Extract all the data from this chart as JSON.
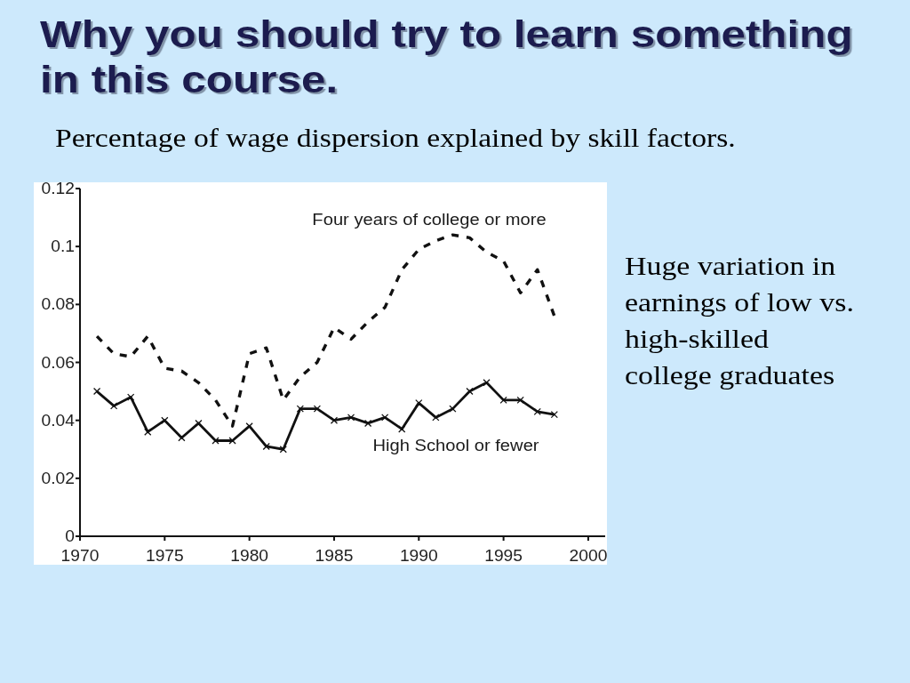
{
  "chart_data": {
    "type": "line",
    "title": "Why you should try to learn something in this course.",
    "subtitle": "Percentage of wage dispersion explained by skill factors.",
    "annotations": [
      "Huge variation in earnings of low vs. high-skilled college graduates"
    ],
    "x": [
      1971,
      1972,
      1973,
      1974,
      1975,
      1976,
      1977,
      1978,
      1979,
      1980,
      1981,
      1982,
      1983,
      1984,
      1985,
      1986,
      1987,
      1988,
      1989,
      1990,
      1991,
      1992,
      1993,
      1994,
      1995,
      1996,
      1997,
      1998
    ],
    "series": [
      {
        "name": "Four years of college or more",
        "color": "#111111",
        "line_style": "dashed",
        "marker": "none",
        "values": [
          0.069,
          0.063,
          0.062,
          0.069,
          0.058,
          0.057,
          0.053,
          0.047,
          0.038,
          0.063,
          0.065,
          0.047,
          0.055,
          0.06,
          0.072,
          0.068,
          0.074,
          0.079,
          0.092,
          0.099,
          0.102,
          0.104,
          0.103,
          0.098,
          0.095,
          0.084,
          0.092,
          0.076
        ]
      },
      {
        "name": "High School or fewer",
        "color": "#111111",
        "line_style": "solid",
        "marker": "cross",
        "values": [
          0.05,
          0.045,
          0.048,
          0.036,
          0.04,
          0.034,
          0.039,
          0.033,
          0.033,
          0.038,
          0.031,
          0.03,
          0.044,
          0.044,
          0.04,
          0.041,
          0.039,
          0.041,
          0.037,
          0.046,
          0.041,
          0.044,
          0.05,
          0.053,
          0.047,
          0.047,
          0.043,
          0.042
        ]
      }
    ],
    "xlim": [
      1970,
      2001
    ],
    "xticks": [
      1970,
      1975,
      1980,
      1985,
      1990,
      1995,
      2000
    ],
    "ylim": [
      0,
      0.12
    ],
    "yticks": [
      0,
      0.02,
      0.04,
      0.06,
      0.08,
      0.1,
      0.12
    ]
  }
}
